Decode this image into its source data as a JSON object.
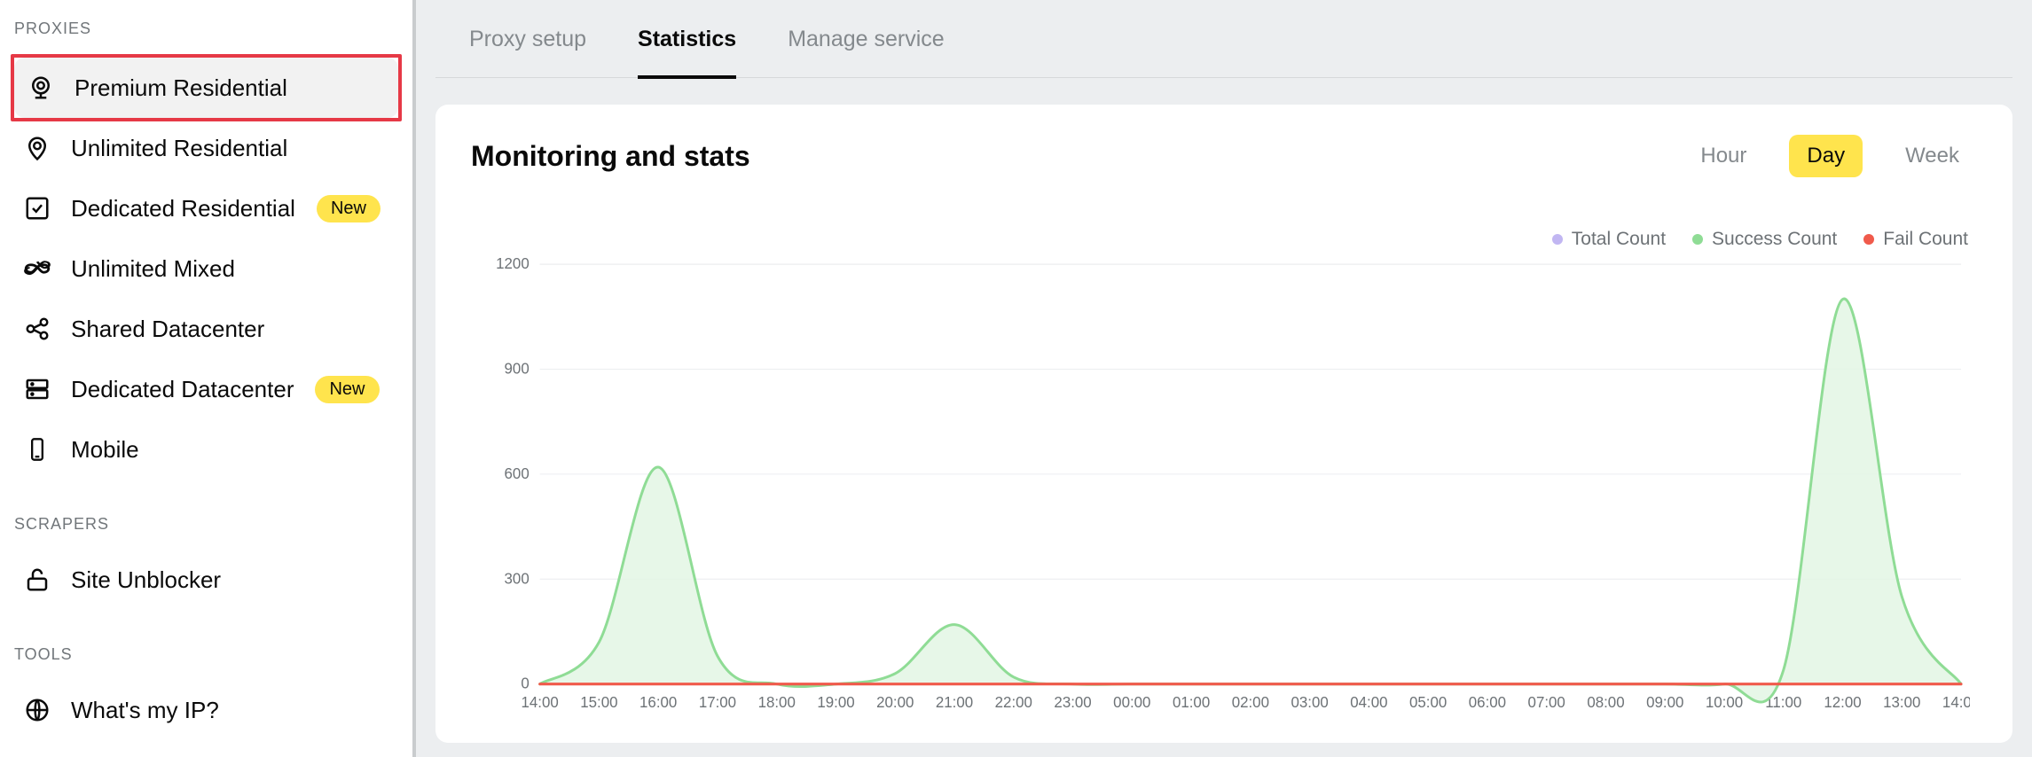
{
  "sidebar": {
    "sections": [
      {
        "title": "PROXIES",
        "items": [
          {
            "label": "Premium Residential",
            "icon": "webcam-icon",
            "active": true,
            "highlighted": true
          },
          {
            "label": "Unlimited Residential",
            "icon": "location-pin-icon"
          },
          {
            "label": "Dedicated Residential",
            "icon": "checklist-icon",
            "badge": "New"
          },
          {
            "label": "Unlimited Mixed",
            "icon": "infinity-icon"
          },
          {
            "label": "Shared Datacenter",
            "icon": "share-nodes-icon"
          },
          {
            "label": "Dedicated Datacenter",
            "icon": "server-icon",
            "badge": "New"
          },
          {
            "label": "Mobile",
            "icon": "mobile-icon"
          }
        ]
      },
      {
        "title": "SCRAPERS",
        "items": [
          {
            "label": "Site Unblocker",
            "icon": "unlock-icon"
          }
        ]
      },
      {
        "title": "TOOLS",
        "items": [
          {
            "label": "What's my IP?",
            "icon": "globe-icon"
          }
        ]
      }
    ]
  },
  "tabs": {
    "items": [
      {
        "label": "Proxy setup",
        "active": false
      },
      {
        "label": "Statistics",
        "active": true
      },
      {
        "label": "Manage service",
        "active": false
      }
    ]
  },
  "card": {
    "title": "Monitoring and stats",
    "range_buttons": [
      {
        "label": "Hour",
        "active": false
      },
      {
        "label": "Day",
        "active": true
      },
      {
        "label": "Week",
        "active": false
      }
    ]
  },
  "chart": {
    "type": "area",
    "background_color": "#ffffff",
    "grid_color": "#eceef0",
    "ylim": [
      0,
      1200
    ],
    "ytick_step": 300,
    "yticks": [
      0,
      300,
      600,
      900,
      1200
    ],
    "xticks": [
      "14:00",
      "15:00",
      "16:00",
      "17:00",
      "18:00",
      "19:00",
      "20:00",
      "21:00",
      "22:00",
      "23:00",
      "00:00",
      "01:00",
      "02:00",
      "03:00",
      "04:00",
      "05:00",
      "06:00",
      "07:00",
      "08:00",
      "09:00",
      "10:00",
      "11:00",
      "12:00",
      "13:00",
      "14:00"
    ],
    "legend": [
      {
        "label": "Total Count",
        "color": "#c1b6f2"
      },
      {
        "label": "Success Count",
        "color": "#8fdc95"
      },
      {
        "label": "Fail Count",
        "color": "#f05a4b"
      }
    ],
    "series": [
      {
        "name": "Success Count",
        "stroke": "#8fdc95",
        "fill": "#e3f6e4",
        "fill_opacity": 0.85,
        "line_width": 3,
        "data": [
          0,
          120,
          620,
          80,
          0,
          0,
          30,
          170,
          20,
          0,
          0,
          0,
          0,
          0,
          0,
          0,
          0,
          0,
          0,
          0,
          0,
          40,
          1100,
          250,
          0
        ]
      },
      {
        "name": "Fail Count",
        "stroke": "#f05a4b",
        "fill": "none",
        "line_width": 3,
        "data": [
          0,
          0,
          0,
          0,
          0,
          0,
          0,
          0,
          0,
          0,
          0,
          0,
          0,
          0,
          0,
          0,
          0,
          0,
          0,
          0,
          0,
          0,
          0,
          0,
          0
        ]
      }
    ],
    "label_fontsize": 17,
    "label_color": "#6d7276"
  },
  "colors": {
    "highlight_border": "#e63946",
    "badge_bg": "#ffe44d",
    "sidebar_active_bg": "#f2f2f2",
    "main_bg": "#eceef0",
    "text_primary": "#0a0a0a",
    "text_muted": "#84898d"
  }
}
